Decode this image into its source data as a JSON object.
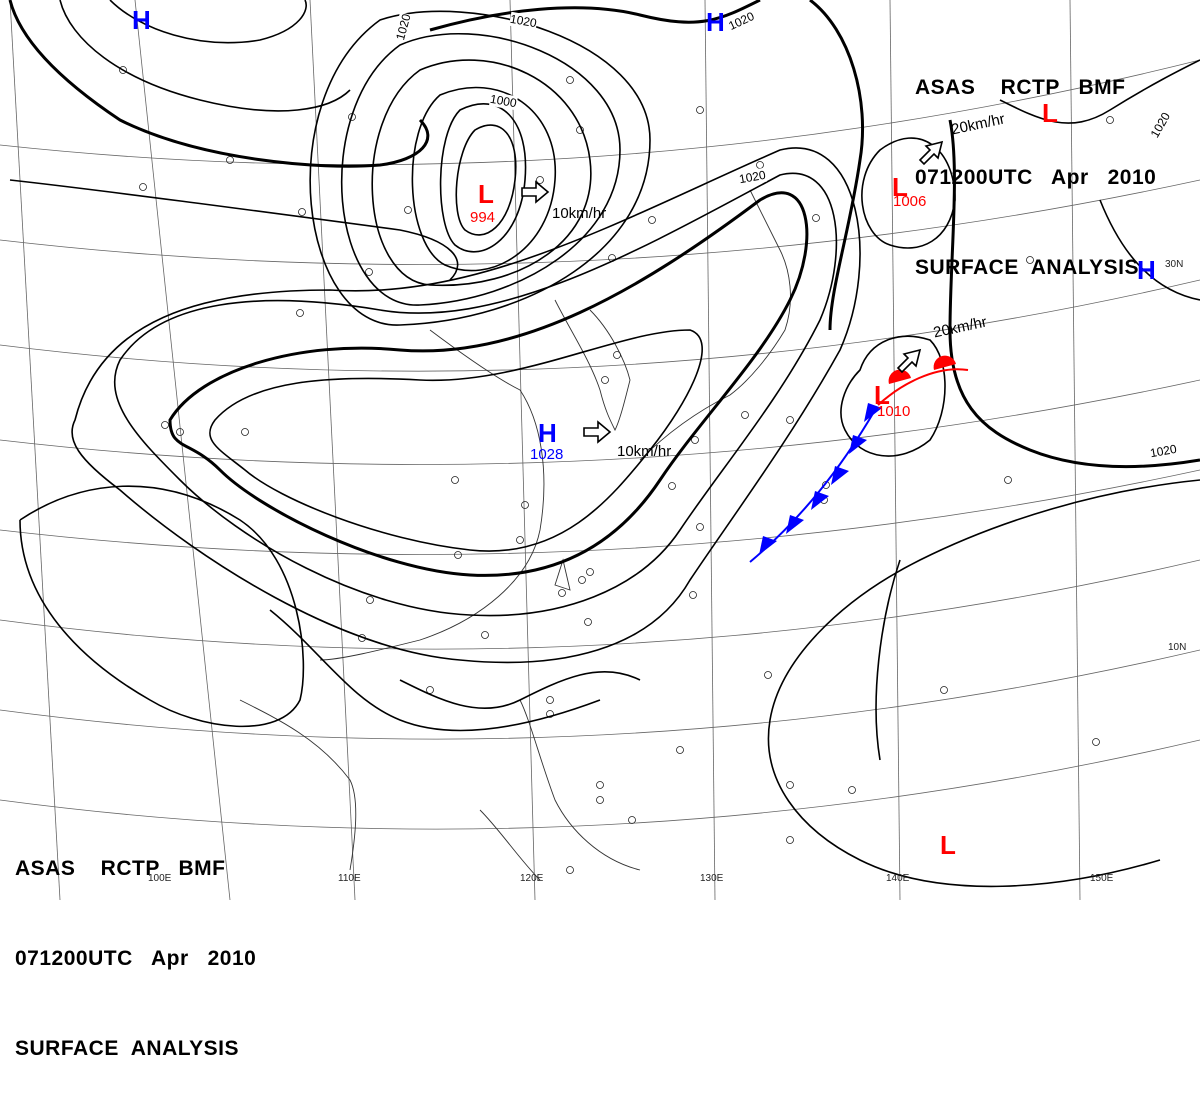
{
  "header": {
    "line1": "ASAS    RCTP   BMF",
    "line2": "071200UTC   Apr   2010",
    "line3": "SURFACE  ANALYSIS"
  },
  "centers": [
    {
      "type": "L",
      "value": "994"
    },
    {
      "type": "L",
      "value": "1006"
    },
    {
      "type": "L",
      "value": "1010"
    },
    {
      "type": "L",
      "value": ""
    },
    {
      "type": "L",
      "value": ""
    },
    {
      "type": "H",
      "value": "1028"
    },
    {
      "type": "H",
      "value": ""
    },
    {
      "type": "H",
      "value": ""
    },
    {
      "type": "H",
      "value": ""
    }
  ],
  "motions": [
    "10km/hr",
    "10km/hr",
    "20km/hr",
    "20km/hr"
  ],
  "isobar_labels": [
    "1000",
    "1020",
    "1020",
    "1020",
    "1020",
    "1020",
    "1020"
  ],
  "longitudes": [
    "100E",
    "110E",
    "120E",
    "130E",
    "140E",
    "150E"
  ],
  "latitudes": [
    "30N",
    "10N"
  ],
  "colors": {
    "low": "#ff0000",
    "high": "#0000ff",
    "cold_front": "#0000ff",
    "warm_front": "#ff0000",
    "isobar": "#000000",
    "grid": "#555555"
  }
}
